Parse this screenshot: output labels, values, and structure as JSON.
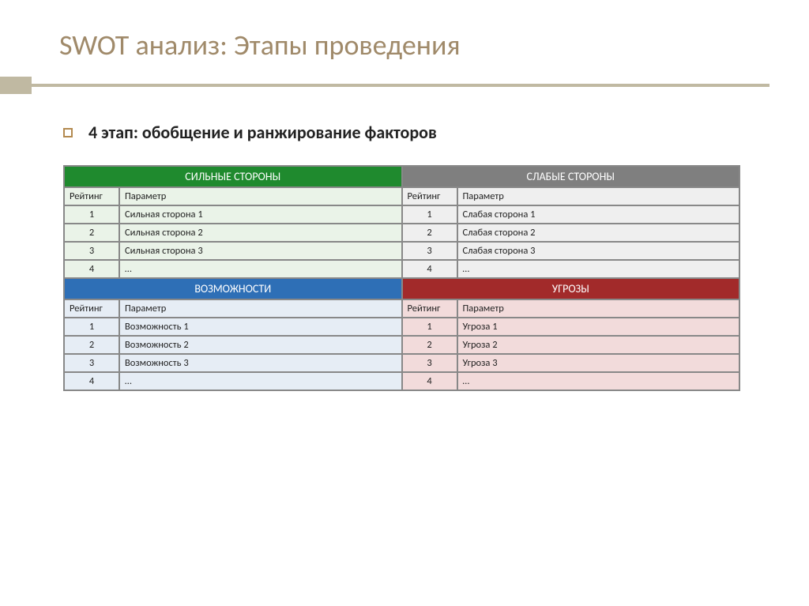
{
  "title": "SWOT анализ: Этапы проведения",
  "bullet": "4 этап: обобщение и ранжирование факторов",
  "columns": {
    "rating": "Рейтинг",
    "param": "Параметр"
  },
  "quadrants": [
    {
      "key": "strengths",
      "title": "СИЛЬНЫЕ СТОРОНЫ",
      "header_bg": "#1f8a2e",
      "body_bg": "#eaf3e8",
      "rows": [
        {
          "rating": "1",
          "param": "Сильная сторона 1"
        },
        {
          "rating": "2",
          "param": "Сильная сторона 2"
        },
        {
          "rating": "3",
          "param": "Сильная сторона 3"
        },
        {
          "rating": "4",
          "param": "…"
        }
      ]
    },
    {
      "key": "weaknesses",
      "title": "СЛАБЫЕ СТОРОНЫ",
      "header_bg": "#7f7f7f",
      "body_bg": "#efefef",
      "rows": [
        {
          "rating": "1",
          "param": "Слабая сторона 1"
        },
        {
          "rating": "2",
          "param": "Слабая сторона 2"
        },
        {
          "rating": "3",
          "param": "Слабая сторона 3"
        },
        {
          "rating": "4",
          "param": "…"
        }
      ]
    },
    {
      "key": "opportunities",
      "title": "ВОЗМОЖНОСТИ",
      "header_bg": "#2e6fb6",
      "body_bg": "#e6edf5",
      "rows": [
        {
          "rating": "1",
          "param": "Возможность 1"
        },
        {
          "rating": "2",
          "param": "Возможность 2"
        },
        {
          "rating": "3",
          "param": "Возможность 3"
        },
        {
          "rating": "4",
          "param": "…"
        }
      ]
    },
    {
      "key": "threats",
      "title": "УГРОЗЫ",
      "header_bg": "#a22a2a",
      "body_bg": "#f2dbdb",
      "rows": [
        {
          "rating": "1",
          "param": "Угроза 1"
        },
        {
          "rating": "2",
          "param": "Угроза 2"
        },
        {
          "rating": "3",
          "param": "Угроза 3"
        },
        {
          "rating": "4",
          "param": "…"
        }
      ]
    }
  ]
}
